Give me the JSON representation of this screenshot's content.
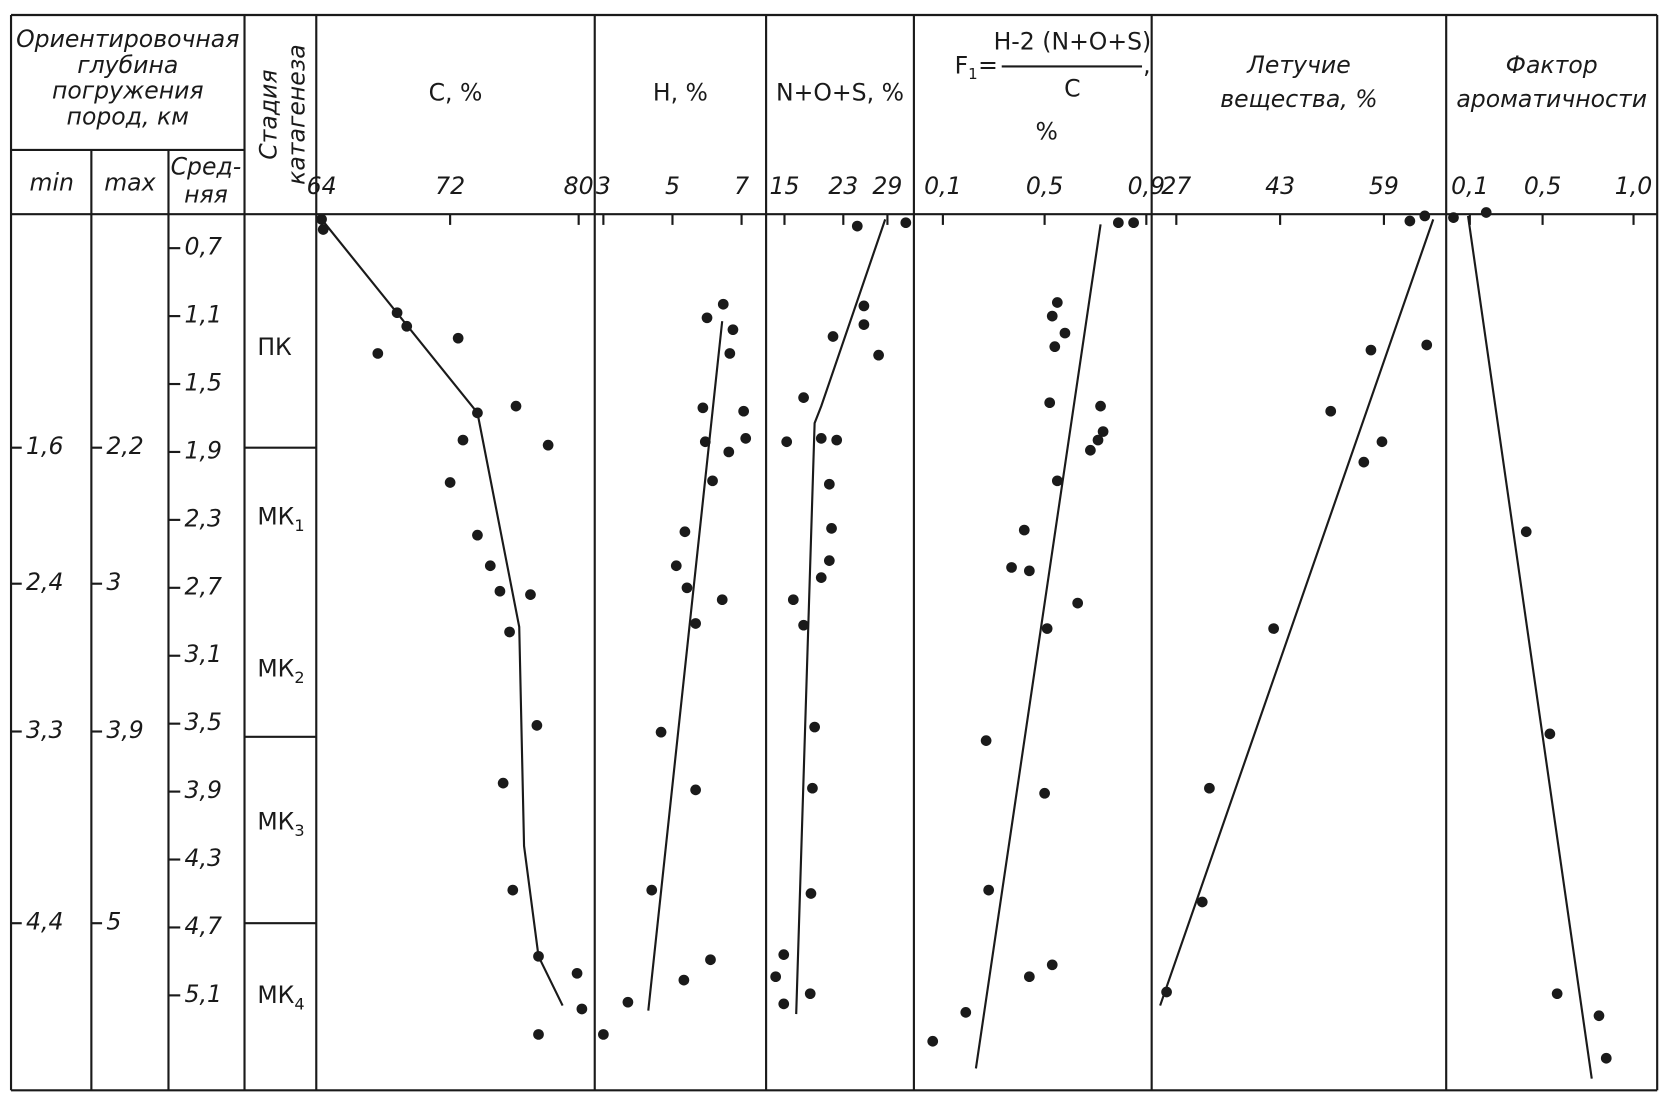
{
  "header": {
    "depth_title": [
      "Ориентировочная",
      "глубина",
      "погружения",
      "пород, км"
    ],
    "min": "min",
    "max": "max",
    "avg": [
      "Сред-",
      "няя"
    ],
    "stage_title": [
      "Стадия",
      "катагенеза"
    ]
  },
  "depth_axis": {
    "ylim": [
      0.5,
      5.64
    ],
    "yticks": [
      {
        "value": 0.7,
        "label": "0,7"
      },
      {
        "value": 1.1,
        "label": "1,1"
      },
      {
        "value": 1.5,
        "label": "1,5"
      },
      {
        "value": 1.9,
        "label": "1,9"
      },
      {
        "value": 2.3,
        "label": "2,3"
      },
      {
        "value": 2.7,
        "label": "2,7"
      },
      {
        "value": 3.1,
        "label": "3,1"
      },
      {
        "value": 3.5,
        "label": "3,5"
      },
      {
        "value": 3.9,
        "label": "3,9"
      },
      {
        "value": 4.3,
        "label": "4,3"
      },
      {
        "value": 4.7,
        "label": "4,7"
      },
      {
        "value": 5.1,
        "label": "5,1"
      }
    ]
  },
  "depth_ranges": {
    "min": [
      "1,6",
      "2,4",
      "3,3",
      "4,4"
    ],
    "max": [
      "2,2",
      "3",
      "3,9",
      "5"
    ]
  },
  "stages": [
    {
      "name": "ПК"
    },
    {
      "name": "МК",
      "sub": "1"
    },
    {
      "name": "МК",
      "sub": "2"
    },
    {
      "name": "МК",
      "sub": "3"
    },
    {
      "name": "МК",
      "sub": "4"
    }
  ],
  "chart_data": [
    {
      "type": "scatter",
      "title": "C, %",
      "xlim": [
        63.67,
        81
      ],
      "xticks": [
        64,
        72,
        80
      ],
      "points": {
        "x": [
          64,
          64.1,
          68.7,
          69.3,
          67.5,
          72.5,
          73.7,
          76.1,
          72.8,
          78.1,
          72,
          73.7,
          74.5,
          75.1,
          77,
          75.7,
          77.4,
          75.3,
          75.9,
          77.5,
          79.9,
          80.2,
          77.5
        ],
        "y": [
          0.53,
          0.59,
          1.08,
          1.16,
          1.32,
          1.23,
          1.67,
          1.63,
          1.83,
          1.86,
          2.08,
          2.39,
          2.57,
          2.72,
          2.74,
          2.96,
          3.51,
          3.85,
          4.48,
          4.87,
          4.97,
          5.18,
          5.33
        ]
      },
      "trend": {
        "x": [
          64,
          73.7,
          76.3,
          76.6,
          77.5,
          79
        ],
        "y": [
          0.53,
          1.67,
          2.93,
          4.22,
          4.87,
          5.16
        ]
      }
    },
    {
      "type": "scatter",
      "title": "H, %",
      "xlim": [
        2.75,
        7.71
      ],
      "xticks": [
        3,
        5,
        7
      ],
      "points": {
        "x": [
          6.47,
          6,
          6.75,
          6.66,
          5.88,
          7.06,
          5.95,
          7.12,
          6.63,
          6.16,
          5.36,
          5.11,
          5.42,
          6.44,
          5.67,
          4.67,
          5.67,
          4.4,
          6.1,
          5.33,
          3.71,
          3
        ],
        "y": [
          1.03,
          1.11,
          1.18,
          1.32,
          1.64,
          1.66,
          1.84,
          1.82,
          1.9,
          2.07,
          2.37,
          2.57,
          2.7,
          2.77,
          2.91,
          3.55,
          3.89,
          4.48,
          4.89,
          5.01,
          5.14,
          5.33
        ]
      },
      "trend": {
        "x": [
          6.44,
          4.3
        ],
        "y": [
          1.13,
          5.19
        ]
      }
    },
    {
      "type": "scatter",
      "title": "N+O+S, %",
      "xlim": [
        12.5,
        32.6
      ],
      "xticks": [
        15,
        23,
        29
      ],
      "points": {
        "x": [
          24.9,
          31.5,
          25.8,
          25.8,
          21.6,
          27.8,
          17.6,
          20,
          22.1,
          15.3,
          21.1,
          21.4,
          21.1,
          20,
          16.2,
          17.6,
          19.1,
          18.8,
          18.6,
          14.9,
          13.8,
          18.5,
          14.9
        ],
        "y": [
          0.57,
          0.55,
          1.04,
          1.15,
          1.22,
          1.33,
          1.58,
          1.82,
          1.83,
          1.84,
          2.09,
          2.35,
          2.54,
          2.64,
          2.77,
          2.92,
          3.52,
          3.88,
          4.5,
          4.86,
          4.99,
          5.09,
          5.15
        ]
      },
      "trend": {
        "x": [
          28.7,
          20,
          19.1,
          16.6
        ],
        "y": [
          0.53,
          1.63,
          1.73,
          5.21
        ]
      }
    },
    {
      "type": "scatter",
      "title": {
        "symbol": "F",
        "sub": "1",
        "eq": "=",
        "numerator": "H-2 (N+O+S)",
        "denominator": "C",
        "comma": ",",
        "unit": "%"
      },
      "xlim": [
        -0.014,
        0.921
      ],
      "xticks": [
        {
          "value": 0.1,
          "label": "0,1"
        },
        {
          "value": 0.5,
          "label": "0,5"
        },
        {
          "value": 0.9,
          "label": "0,9"
        }
      ],
      "points": {
        "x": [
          0.79,
          0.85,
          0.55,
          0.53,
          0.58,
          0.54,
          0.52,
          0.72,
          0.73,
          0.71,
          0.68,
          0.55,
          0.42,
          0.37,
          0.44,
          0.63,
          0.51,
          0.27,
          0.5,
          0.28,
          0.53,
          0.44,
          0.19,
          0.06
        ],
        "y": [
          0.55,
          0.55,
          1.02,
          1.1,
          1.2,
          1.28,
          1.61,
          1.63,
          1.78,
          1.83,
          1.89,
          2.07,
          2.36,
          2.58,
          2.6,
          2.79,
          2.94,
          3.6,
          3.91,
          4.48,
          4.92,
          4.99,
          5.2,
          5.37
        ]
      },
      "trend": {
        "x": [
          0.72,
          0.23
        ],
        "y": [
          0.56,
          5.53
        ]
      }
    },
    {
      "type": "scatter",
      "title": [
        "Летучие",
        "вещества, %"
      ],
      "xlim": [
        23.2,
        68.6
      ],
      "xticks": [
        27,
        43,
        59
      ],
      "points": {
        "x": [
          63,
          65.3,
          65.6,
          57,
          50.8,
          58.7,
          55.9,
          42,
          32.1,
          31,
          25.5
        ],
        "y": [
          0.54,
          0.51,
          1.27,
          1.3,
          1.66,
          1.84,
          1.96,
          2.94,
          3.88,
          4.55,
          5.08
        ]
      },
      "trend": {
        "x": [
          66.6,
          24.5
        ],
        "y": [
          0.53,
          5.16
        ]
      }
    },
    {
      "type": "scatter",
      "title": [
        "Фактор",
        "ароматичности"
      ],
      "xlim": [
        -0.03,
        1.13
      ],
      "xticks": [
        {
          "value": 0.1,
          "label": "0,1"
        },
        {
          "value": 0.5,
          "label": "0,5"
        },
        {
          "value": 1.0,
          "label": "1,0"
        }
      ],
      "points": {
        "x": [
          0.01,
          0.19,
          0.41,
          0.54,
          0.58,
          0.81,
          0.85
        ],
        "y": [
          0.52,
          0.49,
          2.37,
          3.56,
          5.09,
          5.22,
          5.47
        ]
      },
      "trend": {
        "x": [
          0.09,
          0.77
        ],
        "y": [
          0.51,
          5.59
        ]
      }
    }
  ]
}
